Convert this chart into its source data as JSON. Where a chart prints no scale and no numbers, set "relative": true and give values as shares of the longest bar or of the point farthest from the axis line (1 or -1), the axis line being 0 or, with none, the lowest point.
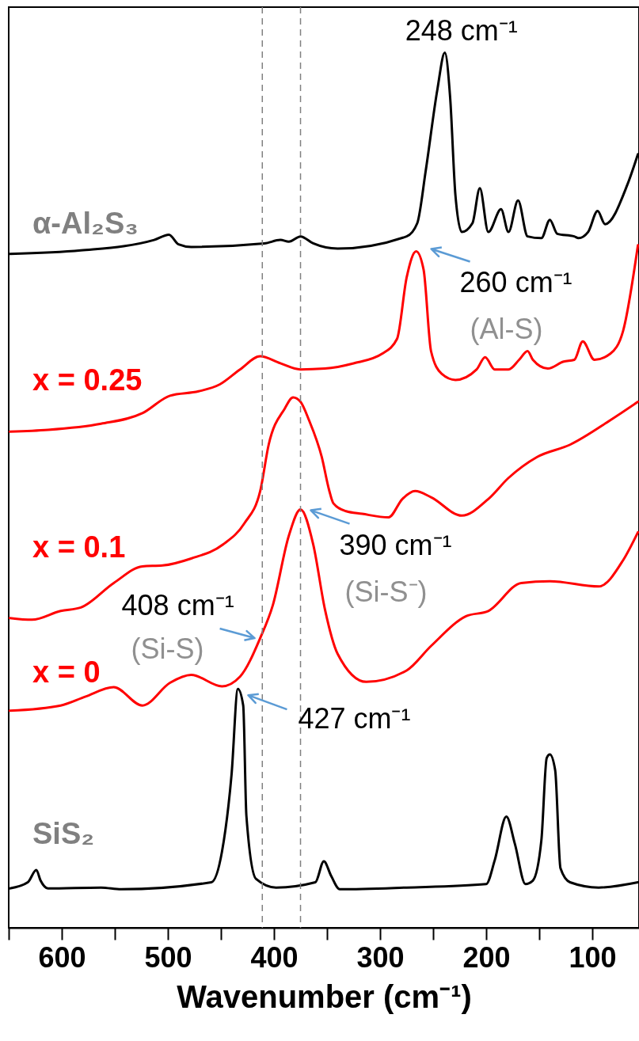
{
  "chart_data": {
    "type": "line",
    "relative": true,
    "xlabel": "Wavenumber (cm⁻¹)",
    "xlim": [
      650,
      56
    ],
    "xticks": [
      {
        "value": 650,
        "label": null
      },
      600,
      {
        "value": 550,
        "label": null
      },
      500,
      {
        "value": 450,
        "label": null
      },
      400,
      {
        "value": 350,
        "label": null
      },
      300,
      {
        "value": 250,
        "label": null
      },
      200,
      {
        "value": 150,
        "label": null
      },
      100
    ],
    "legend": false,
    "grid": false,
    "line_style": "solid",
    "series": [
      {
        "name": "α-Al₂S₃",
        "color": "#000000",
        "x": [
          649,
          582,
          513,
          499,
          490,
          478,
          409,
          394,
          386,
          375,
          363,
          340,
          275,
          265,
          257,
          246,
          239,
          234,
          229,
          223,
          213,
          206,
          198,
          186,
          179,
          170,
          161,
          148,
          140,
          133,
          117,
          113,
          104,
          95,
          88,
          67,
          57
        ],
        "values": [
          0.77,
          0.774,
          0.786,
          0.792,
          0.781,
          0.778,
          0.782,
          0.786,
          0.784,
          0.79,
          0.782,
          0.776,
          0.79,
          0.805,
          0.865,
          0.958,
          1.0,
          0.949,
          0.837,
          0.795,
          0.805,
          0.845,
          0.795,
          0.821,
          0.795,
          0.831,
          0.79,
          0.788,
          0.809,
          0.793,
          0.79,
          0.788,
          0.795,
          0.819,
          0.804,
          0.849,
          0.884
        ]
      },
      {
        "name": "x = 0.25",
        "color": "#ff0000",
        "x": [
          649,
          613,
          563,
          524,
          498,
          471,
          451,
          432,
          413,
          394,
          375,
          352,
          325,
          298,
          284,
          275,
          266,
          259,
          252,
          242,
          229,
          209,
          201,
          192,
          179,
          169,
          161,
          156,
          142,
          127,
          117,
          109,
          98,
          83,
          71,
          57
        ],
        "values": [
          0.567,
          0.569,
          0.576,
          0.588,
          0.608,
          0.613,
          0.621,
          0.638,
          0.653,
          0.645,
          0.638,
          0.639,
          0.645,
          0.656,
          0.673,
          0.743,
          0.773,
          0.752,
          0.659,
          0.633,
          0.626,
          0.638,
          0.652,
          0.638,
          0.638,
          0.649,
          0.659,
          0.649,
          0.639,
          0.647,
          0.649,
          0.67,
          0.649,
          0.656,
          0.682,
          0.78
        ]
      },
      {
        "name": "x = 0.1",
        "color": "#ff0000",
        "x": [
          649,
          628,
          601,
          582,
          551,
          524,
          505,
          478,
          448,
          428,
          413,
          405,
          390,
          382,
          375,
          367,
          355,
          348,
          344,
          332,
          317,
          292,
          279,
          267,
          252,
          223,
          198,
          179,
          152,
          121,
          83,
          57
        ],
        "values": [
          0.354,
          0.352,
          0.362,
          0.366,
          0.394,
          0.413,
          0.414,
          0.422,
          0.438,
          0.462,
          0.499,
          0.552,
          0.593,
          0.606,
          0.601,
          0.58,
          0.538,
          0.5,
          0.485,
          0.476,
          0.473,
          0.469,
          0.49,
          0.499,
          0.492,
          0.471,
          0.49,
          0.514,
          0.538,
          0.552,
          0.58,
          0.601
        ]
      },
      {
        "name": "x = 0",
        "color": "#ff0000",
        "x": [
          649,
          601,
          578,
          551,
          524,
          498,
          478,
          449,
          432,
          413,
          401,
          386,
          375,
          363,
          352,
          340,
          313,
          275,
          252,
          219,
          198,
          167,
          140,
          94,
          71,
          57
        ],
        "values": [
          0.248,
          0.254,
          0.264,
          0.275,
          0.254,
          0.28,
          0.289,
          0.276,
          0.287,
          0.331,
          0.369,
          0.448,
          0.478,
          0.438,
          0.364,
          0.313,
          0.281,
          0.294,
          0.322,
          0.356,
          0.362,
          0.394,
          0.396,
          0.39,
          0.42,
          0.452
        ]
      },
      {
        "name": "SiS₂",
        "color": "#000000",
        "x": [
          649,
          632,
          624,
          620,
          613,
          563,
          544,
          459,
          449,
          440,
          434,
          429,
          426,
          417,
          398,
          361,
          353,
          346,
          338,
          275,
          200,
          192,
          181,
          173,
          163,
          156,
          148,
          143,
          140,
          135,
          130,
          121,
          94,
          57
        ],
        "values": [
          0.045,
          0.052,
          0.066,
          0.054,
          0.045,
          0.046,
          0.044,
          0.052,
          0.087,
          0.175,
          0.273,
          0.254,
          0.128,
          0.056,
          0.046,
          0.052,
          0.076,
          0.059,
          0.044,
          0.046,
          0.05,
          0.077,
          0.127,
          0.096,
          0.05,
          0.054,
          0.1,
          0.194,
          0.198,
          0.18,
          0.068,
          0.052,
          0.046,
          0.052
        ]
      }
    ],
    "ref_lines": [
      {
        "axis": "x",
        "value": 411,
        "color": "#808080",
        "line_style": "dashed"
      },
      {
        "axis": "x",
        "value": 375,
        "color": "#808080",
        "line_style": "dashed"
      }
    ],
    "annotations": [
      {
        "text": "248 cm⁻¹",
        "x": 239,
        "y": 1.0
      },
      {
        "text": "260 cm⁻¹",
        "x": 266,
        "y": 0.773
      },
      {
        "text": "(Al-S)",
        "x": 266,
        "y": 0.773
      },
      {
        "text": "390 cm⁻¹",
        "x": 375,
        "y": 0.478
      },
      {
        "text": "(Si-S⁻)",
        "x": 375,
        "y": 0.478
      },
      {
        "text": "408 cm⁻¹",
        "x": 413,
        "y": 0.331
      },
      {
        "text": "(Si-S)",
        "x": 413,
        "y": 0.331
      },
      {
        "text": "427 cm⁻¹",
        "x": 434,
        "y": 0.273
      }
    ]
  }
}
